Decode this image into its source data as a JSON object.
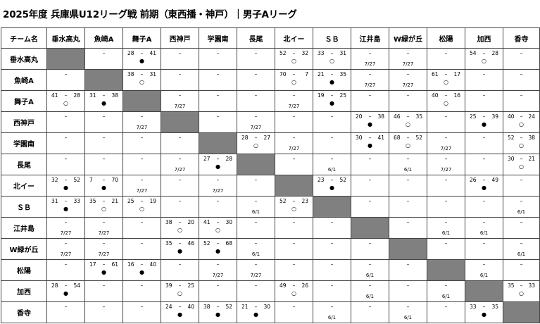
{
  "title": "2025年度 兵庫県U12リーグ戦 前期（東西播・神戸）｜男子Aリーグ",
  "header_label": "チーム名",
  "teams": [
    "垂水高丸",
    "魚崎A",
    "舞子A",
    "西神戸",
    "学園南",
    "長尾",
    "北イー",
    "ＳＢ",
    "江井島",
    "W緑が丘",
    "松陽",
    "加西",
    "香寺"
  ],
  "dash": "–",
  "results": {
    "0-2": {
      "h": "28",
      "a": "41",
      "m": "●",
      "d": ""
    },
    "0-6": {
      "h": "52",
      "a": "32",
      "m": "○",
      "d": ""
    },
    "0-7": {
      "h": "33",
      "a": "31",
      "m": "○",
      "d": ""
    },
    "0-8": {
      "h": "",
      "a": "",
      "m": "",
      "d": "7/27"
    },
    "0-9": {
      "h": "",
      "a": "",
      "m": "",
      "d": "7/27"
    },
    "0-11": {
      "h": "54",
      "a": "28",
      "m": "○",
      "d": ""
    },
    "1-2": {
      "h": "38",
      "a": "31",
      "m": "○",
      "d": ""
    },
    "1-6": {
      "h": "70",
      "a": "7",
      "m": "○",
      "d": ""
    },
    "1-7": {
      "h": "21",
      "a": "35",
      "m": "●",
      "d": ""
    },
    "1-8": {
      "h": "",
      "a": "",
      "m": "",
      "d": "7/27"
    },
    "1-9": {
      "h": "",
      "a": "",
      "m": "",
      "d": "7/27"
    },
    "1-10": {
      "h": "61",
      "a": "17",
      "m": "○",
      "d": ""
    },
    "2-0": {
      "h": "41",
      "a": "28",
      "m": "○",
      "d": ""
    },
    "2-1": {
      "h": "31",
      "a": "38",
      "m": "●",
      "d": ""
    },
    "2-3": {
      "h": "",
      "a": "",
      "m": "",
      "d": "7/27"
    },
    "2-6": {
      "h": "",
      "a": "",
      "m": "",
      "d": "7/27"
    },
    "2-7": {
      "h": "19",
      "a": "25",
      "m": "●",
      "d": ""
    },
    "2-10": {
      "h": "40",
      "a": "16",
      "m": "○",
      "d": ""
    },
    "3-2": {
      "h": "",
      "a": "",
      "m": "",
      "d": "7/27"
    },
    "3-5": {
      "h": "",
      "a": "",
      "m": "",
      "d": "7/27"
    },
    "3-8": {
      "h": "20",
      "a": "38",
      "m": "●",
      "d": ""
    },
    "3-9": {
      "h": "46",
      "a": "35",
      "m": "○",
      "d": ""
    },
    "3-11": {
      "h": "25",
      "a": "39",
      "m": "●",
      "d": ""
    },
    "3-12": {
      "h": "40",
      "a": "24",
      "m": "○",
      "d": ""
    },
    "4-5": {
      "h": "28",
      "a": "27",
      "m": "○",
      "d": ""
    },
    "4-6": {
      "h": "",
      "a": "",
      "m": "",
      "d": "7/27"
    },
    "4-8": {
      "h": "30",
      "a": "41",
      "m": "●",
      "d": ""
    },
    "4-9": {
      "h": "68",
      "a": "52",
      "m": "○",
      "d": ""
    },
    "4-10": {
      "h": "",
      "a": "",
      "m": "",
      "d": "7/27"
    },
    "4-12": {
      "h": "52",
      "a": "38",
      "m": "○",
      "d": ""
    },
    "5-3": {
      "h": "",
      "a": "",
      "m": "",
      "d": "7/27"
    },
    "5-4": {
      "h": "27",
      "a": "28",
      "m": "●",
      "d": ""
    },
    "5-7": {
      "h": "",
      "a": "",
      "m": "",
      "d": "6/1"
    },
    "5-9": {
      "h": "",
      "a": "",
      "m": "",
      "d": "6/1"
    },
    "5-10": {
      "h": "",
      "a": "",
      "m": "",
      "d": "7/27"
    },
    "5-12": {
      "h": "30",
      "a": "21",
      "m": "○",
      "d": ""
    },
    "6-0": {
      "h": "32",
      "a": "52",
      "m": "●",
      "d": ""
    },
    "6-1": {
      "h": "7",
      "a": "70",
      "m": "●",
      "d": ""
    },
    "6-2": {
      "h": "",
      "a": "",
      "m": "",
      "d": "7/27"
    },
    "6-4": {
      "h": "",
      "a": "",
      "m": "",
      "d": "7/27"
    },
    "6-7": {
      "h": "23",
      "a": "52",
      "m": "●",
      "d": ""
    },
    "6-11": {
      "h": "26",
      "a": "49",
      "m": "●",
      "d": ""
    },
    "7-0": {
      "h": "31",
      "a": "33",
      "m": "●",
      "d": ""
    },
    "7-1": {
      "h": "35",
      "a": "21",
      "m": "○",
      "d": ""
    },
    "7-2": {
      "h": "25",
      "a": "19",
      "m": "○",
      "d": ""
    },
    "7-5": {
      "h": "",
      "a": "",
      "m": "",
      "d": "6/1"
    },
    "7-6": {
      "h": "52",
      "a": "23",
      "m": "○",
      "d": ""
    },
    "7-12": {
      "h": "",
      "a": "",
      "m": "",
      "d": "6/1"
    },
    "8-0": {
      "h": "",
      "a": "",
      "m": "",
      "d": "7/27"
    },
    "8-1": {
      "h": "",
      "a": "",
      "m": "",
      "d": "7/27"
    },
    "8-3": {
      "h": "38",
      "a": "20",
      "m": "○",
      "d": ""
    },
    "8-4": {
      "h": "41",
      "a": "30",
      "m": "○",
      "d": ""
    },
    "8-10": {
      "h": "",
      "a": "",
      "m": "",
      "d": "6/1"
    },
    "8-11": {
      "h": "",
      "a": "",
      "m": "",
      "d": "6/1"
    },
    "9-0": {
      "h": "",
      "a": "",
      "m": "",
      "d": "7/27"
    },
    "9-1": {
      "h": "",
      "a": "",
      "m": "",
      "d": "7/27"
    },
    "9-3": {
      "h": "35",
      "a": "46",
      "m": "●",
      "d": ""
    },
    "9-4": {
      "h": "52",
      "a": "68",
      "m": "●",
      "d": ""
    },
    "9-5": {
      "h": "",
      "a": "",
      "m": "",
      "d": "6/1"
    },
    "9-12": {
      "h": "",
      "a": "",
      "m": "",
      "d": "6/1"
    },
    "10-1": {
      "h": "17",
      "a": "61",
      "m": "●",
      "d": ""
    },
    "10-2": {
      "h": "16",
      "a": "40",
      "m": "●",
      "d": ""
    },
    "10-4": {
      "h": "",
      "a": "",
      "m": "",
      "d": "7/27"
    },
    "10-5": {
      "h": "",
      "a": "",
      "m": "",
      "d": "7/27"
    },
    "10-8": {
      "h": "",
      "a": "",
      "m": "",
      "d": "6/1"
    },
    "10-11": {
      "h": "",
      "a": "",
      "m": "",
      "d": "6/1"
    },
    "11-0": {
      "h": "28",
      "a": "54",
      "m": "●",
      "d": ""
    },
    "11-3": {
      "h": "39",
      "a": "25",
      "m": "○",
      "d": ""
    },
    "11-6": {
      "h": "49",
      "a": "26",
      "m": "○",
      "d": ""
    },
    "11-8": {
      "h": "",
      "a": "",
      "m": "",
      "d": "6/1"
    },
    "11-10": {
      "h": "",
      "a": "",
      "m": "",
      "d": "6/1"
    },
    "11-12": {
      "h": "35",
      "a": "33",
      "m": "○",
      "d": ""
    },
    "12-3": {
      "h": "24",
      "a": "40",
      "m": "●",
      "d": ""
    },
    "12-4": {
      "h": "38",
      "a": "52",
      "m": "●",
      "d": ""
    },
    "12-5": {
      "h": "21",
      "a": "30",
      "m": "●",
      "d": ""
    },
    "12-7": {
      "h": "",
      "a": "",
      "m": "",
      "d": "6/1"
    },
    "12-9": {
      "h": "",
      "a": "",
      "m": "",
      "d": "6/1"
    },
    "12-11": {
      "h": "33",
      "a": "35",
      "m": "●",
      "d": ""
    }
  }
}
